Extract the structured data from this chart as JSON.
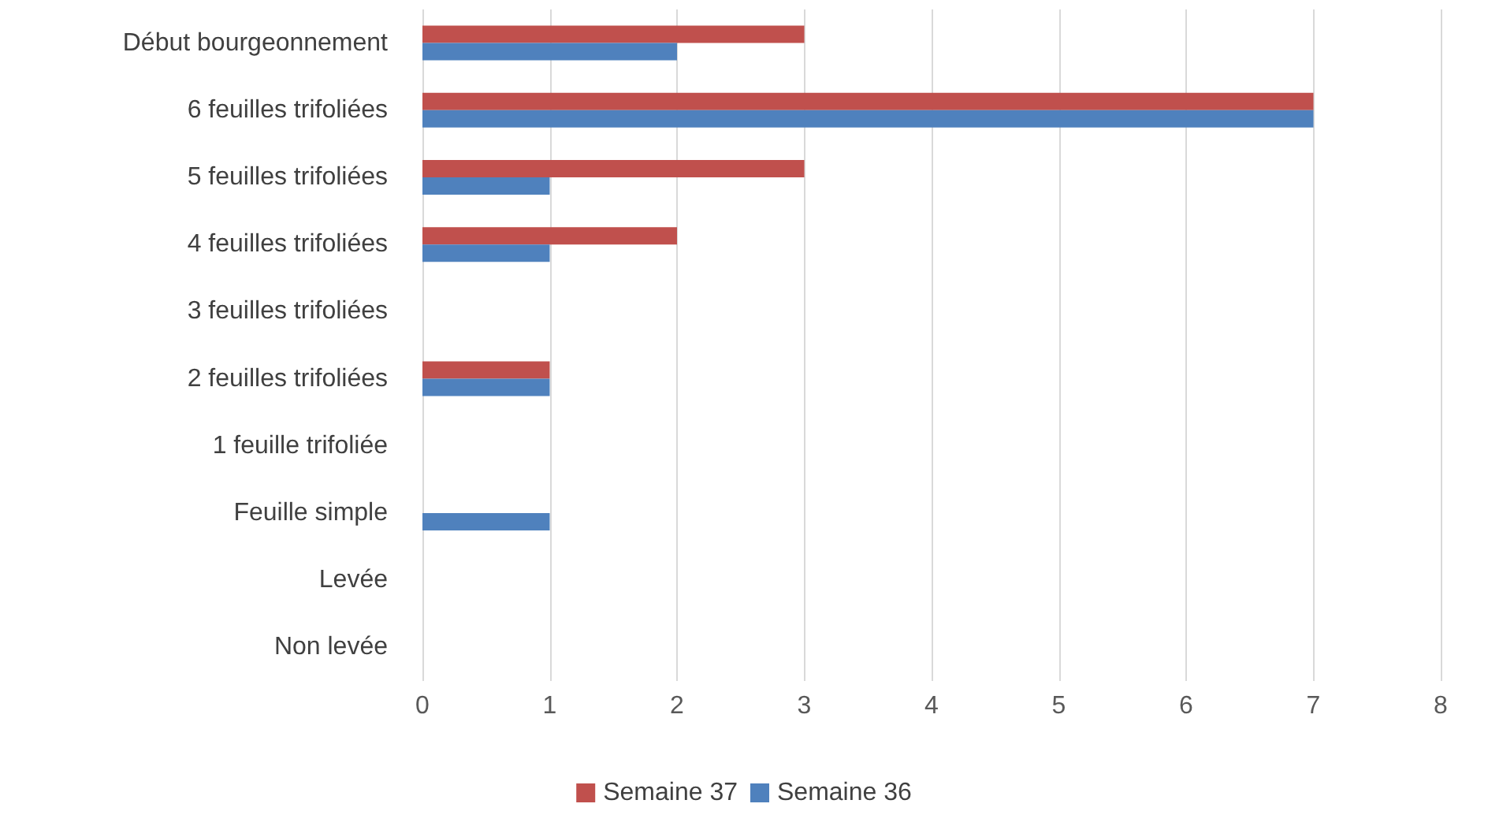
{
  "chart_data": {
    "type": "bar",
    "orientation": "horizontal",
    "categories": [
      "Début bourgeonnement",
      "6 feuilles trifoliées",
      "5 feuilles trifoliées",
      "4 feuilles trifoliées",
      "3 feuilles trifoliées",
      "2 feuilles trifoliées",
      "1 feuille trifoliée",
      "Feuille simple",
      "Levée",
      "Non levée"
    ],
    "series": [
      {
        "name": "Semaine 37",
        "color": "#c0504d",
        "values": [
          3,
          7,
          3,
          2,
          0,
          1,
          0,
          0,
          0,
          0
        ]
      },
      {
        "name": "Semaine 36",
        "color": "#4f81bd",
        "values": [
          2,
          7,
          1,
          1,
          0,
          1,
          0,
          1,
          0,
          0
        ]
      }
    ],
    "xlim": [
      0,
      8
    ],
    "xticks": [
      0,
      1,
      2,
      3,
      4,
      5,
      6,
      7,
      8
    ],
    "grid": "x",
    "legend": "bottom"
  }
}
